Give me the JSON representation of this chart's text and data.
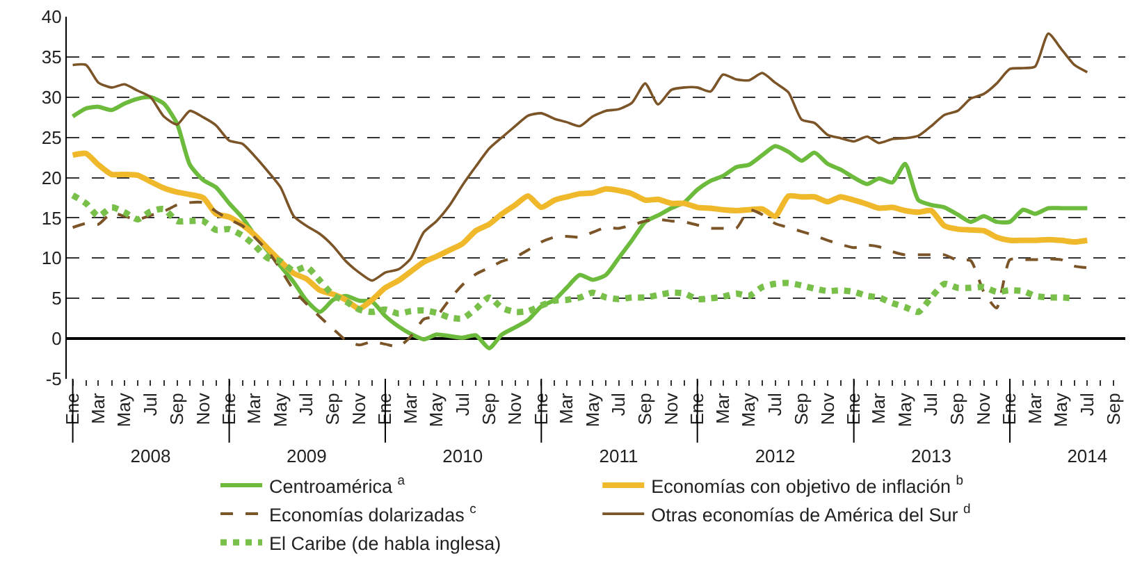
{
  "chart_data": {
    "type": "line",
    "x": [
      "2008-01",
      "2008-02",
      "2008-03",
      "2008-04",
      "2008-05",
      "2008-06",
      "2008-07",
      "2008-08",
      "2008-09",
      "2008-10",
      "2008-11",
      "2008-12",
      "2009-01",
      "2009-02",
      "2009-03",
      "2009-04",
      "2009-05",
      "2009-06",
      "2009-07",
      "2009-08",
      "2009-09",
      "2009-10",
      "2009-11",
      "2009-12",
      "2010-01",
      "2010-02",
      "2010-03",
      "2010-04",
      "2010-05",
      "2010-06",
      "2010-07",
      "2010-08",
      "2010-09",
      "2010-10",
      "2010-11",
      "2010-12",
      "2011-01",
      "2011-02",
      "2011-03",
      "2011-04",
      "2011-05",
      "2011-06",
      "2011-07",
      "2011-08",
      "2011-09",
      "2011-10",
      "2011-11",
      "2011-12",
      "2012-01",
      "2012-02",
      "2012-03",
      "2012-04",
      "2012-05",
      "2012-06",
      "2012-07",
      "2012-08",
      "2012-09",
      "2012-10",
      "2012-11",
      "2012-12",
      "2013-01",
      "2013-02",
      "2013-03",
      "2013-04",
      "2013-05",
      "2013-06",
      "2013-07",
      "2013-08",
      "2013-09",
      "2013-10",
      "2013-11",
      "2013-12",
      "2014-01",
      "2014-02",
      "2014-03",
      "2014-04",
      "2014-05",
      "2014-06",
      "2014-07"
    ],
    "series": [
      {
        "name": "Centroamérica $^{a}$",
        "color": "#6cbb3c",
        "line_style": "solid",
        "values": [
          27.6,
          28.6,
          28.8,
          28.4,
          29.2,
          29.8,
          30,
          29.2,
          26.7,
          21.6,
          19.7,
          18.8,
          16.8,
          15,
          12.9,
          10.9,
          9,
          7,
          4.7,
          3.3,
          4.8,
          5.3,
          4.7,
          4.6,
          2.8,
          1.5,
          0.6,
          -0.1,
          0.5,
          0.3,
          0.1,
          0.4,
          -1.2,
          0.5,
          1.4,
          2.3,
          4,
          4.8,
          6.3,
          7.9,
          7.3,
          7.9,
          10,
          12.2,
          14.5,
          15.3,
          16.2,
          16.9,
          18.5,
          19.6,
          20.2,
          21.3,
          21.6,
          22.8,
          23.9,
          23.2,
          22.1,
          23.1,
          21.7,
          21,
          20,
          19.2,
          19.9,
          19.4,
          21.7,
          17.2,
          16.6,
          16.3,
          15.4,
          14.5,
          15.2,
          14.5,
          14.5,
          16,
          15.5,
          16.2,
          16.2,
          16.2,
          16.2
        ]
      },
      {
        "name": "Economías con objetivo de inflación $^{b}$",
        "color": "#f0b92b",
        "line_style": "solid",
        "values": [
          22.8,
          23,
          21.6,
          20.4,
          20.4,
          20.3,
          19.5,
          18.7,
          18.2,
          17.9,
          17.5,
          15.5,
          15.1,
          14.1,
          12.9,
          11.2,
          9.6,
          8.1,
          7.4,
          6,
          5.5,
          4.8,
          3.7,
          4.8,
          6.3,
          7.2,
          8.3,
          9.5,
          10.2,
          11,
          11.8,
          13.4,
          14.2,
          15.5,
          16.6,
          17.7,
          16.3,
          17.2,
          17.6,
          18,
          18.1,
          18.6,
          18.4,
          18,
          17.2,
          17.3,
          16.8,
          16.8,
          16.3,
          16.2,
          16,
          15.9,
          16,
          16.1,
          15.2,
          17.7,
          17.6,
          17.6,
          17,
          17.6,
          17.2,
          16.7,
          16.2,
          16.3,
          15.9,
          15.7,
          15.9,
          14,
          13.6,
          13.5,
          13.4,
          12.6,
          12.2,
          12.2,
          12.2,
          12.3,
          12.2,
          12,
          12.2
        ]
      },
      {
        "name": "Economías dolarizadas $^{c}$",
        "color": "#7b5427",
        "line_style": "dashed",
        "values": [
          13.8,
          14.3,
          14.2,
          15.6,
          15.2,
          14.8,
          15.3,
          15.8,
          16.6,
          16.9,
          16.9,
          15.8,
          14.8,
          14,
          12.6,
          10.9,
          8.6,
          6,
          4.3,
          2.7,
          1.2,
          -0.2,
          -0.8,
          -0.4,
          -0.7,
          -1,
          0.2,
          2.4,
          2.8,
          4.9,
          6.7,
          8,
          8.8,
          9.6,
          10.1,
          11,
          12,
          12.6,
          12.7,
          12.6,
          13.2,
          13.8,
          13.7,
          14.1,
          14.6,
          14.8,
          14.6,
          14.5,
          14.1,
          13.7,
          13.7,
          13.7,
          16,
          15.4,
          14.3,
          13.8,
          13.3,
          12.8,
          12.2,
          11.7,
          11.3,
          11.6,
          11.4,
          10.8,
          10.4,
          10.4,
          10.4,
          10.4,
          9.7,
          9.7,
          5.8,
          3.8,
          9.8,
          9.8,
          9.8,
          9.9,
          9.8,
          9,
          8.8
        ]
      },
      {
        "name": "Otras economías de América del Sur $^{d}$",
        "color": "#7b5427",
        "line_style": "solid",
        "values": [
          34,
          34,
          31.8,
          31.2,
          31.6,
          30.8,
          30,
          27.6,
          26.6,
          28.3,
          27.5,
          26.5,
          24.6,
          24.2,
          22.7,
          20.8,
          18.8,
          15.2,
          14,
          13,
          11.5,
          9.6,
          8.2,
          7.2,
          8.2,
          8.6,
          9.9,
          13.2,
          14.6,
          16.6,
          19.1,
          21.4,
          23.6,
          25,
          26.4,
          27.7,
          28,
          27.3,
          26.9,
          26.4,
          27.6,
          28.3,
          28.5,
          29.3,
          31.7,
          29.1,
          30.9,
          31.2,
          31.2,
          30.7,
          32.8,
          32.2,
          32.1,
          33,
          31.8,
          30.6,
          27.2,
          26.8,
          25.3,
          24.9,
          24.5,
          25.1,
          24.3,
          24.8,
          24.9,
          25.2,
          26.4,
          27.8,
          28.3,
          29.8,
          30.4,
          31.7,
          33.5,
          33.6,
          33.8,
          37.9,
          36,
          34,
          33.1
        ]
      },
      {
        "name": "El Caribe (de habla inglesa)",
        "color": "#79c04a",
        "line_style": "dotted",
        "values": [
          17.8,
          16.8,
          15.2,
          16.3,
          15.7,
          14.8,
          15.8,
          16.1,
          14.6,
          14.6,
          14.6,
          13.5,
          13.6,
          12.8,
          11.6,
          10,
          9.6,
          8.4,
          8.9,
          7.2,
          5.4,
          4.6,
          3.6,
          3.3,
          3.6,
          3.1,
          3.4,
          3.5,
          3.2,
          2.6,
          2.5,
          3.7,
          5.1,
          3.8,
          3.3,
          3.4,
          4.1,
          4.7,
          4.8,
          5.1,
          5.7,
          5.1,
          4.9,
          5.1,
          5.1,
          5.4,
          5.7,
          5.6,
          4.9,
          5,
          5.2,
          5.6,
          5.3,
          6.4,
          6.8,
          6.9,
          6.6,
          6.2,
          5.9,
          6,
          5.8,
          5.3,
          5.1,
          4.4,
          3.9,
          3.3,
          5.1,
          6.8,
          6.3,
          6.3,
          6.4,
          5.8,
          6,
          5.9,
          5.3,
          5.1,
          5.1,
          5,
          null
        ]
      }
    ],
    "ylim": [
      -5,
      40
    ],
    "yticks": [
      -5,
      0,
      5,
      10,
      15,
      20,
      25,
      30,
      35,
      40
    ],
    "xlim": [
      "2007-12-18",
      "2014-09-28"
    ],
    "xticks": [
      {
        "value": "2008-01",
        "label": "Ene"
      },
      {
        "value": "2008-02",
        "label": null
      },
      {
        "value": "2008-03",
        "label": "Mar"
      },
      {
        "value": "2008-04",
        "label": null
      },
      {
        "value": "2008-05",
        "label": "May"
      },
      {
        "value": "2008-06",
        "label": null
      },
      {
        "value": "2008-07",
        "label": "Jul"
      },
      {
        "value": "2008-08",
        "label": null
      },
      {
        "value": "2008-09",
        "label": "Sep"
      },
      {
        "value": "2008-10",
        "label": null
      },
      {
        "value": "2008-11",
        "label": "Nov"
      },
      {
        "value": "2008-12",
        "label": null
      },
      {
        "value": "2009-01",
        "label": "Ene"
      },
      {
        "value": "2009-02",
        "label": null
      },
      {
        "value": "2009-03",
        "label": "Mar"
      },
      {
        "value": "2009-04",
        "label": null
      },
      {
        "value": "2009-05",
        "label": "May"
      },
      {
        "value": "2009-06",
        "label": null
      },
      {
        "value": "2009-07",
        "label": "Jul"
      },
      {
        "value": "2009-08",
        "label": null
      },
      {
        "value": "2009-09",
        "label": "Sep"
      },
      {
        "value": "2009-10",
        "label": null
      },
      {
        "value": "2009-11",
        "label": "Nov"
      },
      {
        "value": "2009-12",
        "label": null
      },
      {
        "value": "2010-01",
        "label": "Ene"
      },
      {
        "value": "2010-02",
        "label": null
      },
      {
        "value": "2010-03",
        "label": "Mar"
      },
      {
        "value": "2010-04",
        "label": null
      },
      {
        "value": "2010-05",
        "label": "May"
      },
      {
        "value": "2010-06",
        "label": null
      },
      {
        "value": "2010-07",
        "label": "Jul"
      },
      {
        "value": "2010-08",
        "label": null
      },
      {
        "value": "2010-09",
        "label": "Sep"
      },
      {
        "value": "2010-10",
        "label": null
      },
      {
        "value": "2010-11",
        "label": "Nov"
      },
      {
        "value": "2010-12",
        "label": null
      },
      {
        "value": "2011-01",
        "label": "Ene"
      },
      {
        "value": "2011-02",
        "label": null
      },
      {
        "value": "2011-03",
        "label": "Mar"
      },
      {
        "value": "2011-04",
        "label": null
      },
      {
        "value": "2011-05",
        "label": "May"
      },
      {
        "value": "2011-06",
        "label": null
      },
      {
        "value": "2011-07",
        "label": "Jul"
      },
      {
        "value": "2011-08",
        "label": null
      },
      {
        "value": "2011-09",
        "label": "Sep"
      },
      {
        "value": "2011-10",
        "label": null
      },
      {
        "value": "2011-11",
        "label": "Nov"
      },
      {
        "value": "2011-12",
        "label": null
      },
      {
        "value": "2012-01",
        "label": "Ene"
      },
      {
        "value": "2012-02",
        "label": null
      },
      {
        "value": "2012-03",
        "label": "Mar"
      },
      {
        "value": "2012-04",
        "label": null
      },
      {
        "value": "2012-05",
        "label": "May"
      },
      {
        "value": "2012-06",
        "label": null
      },
      {
        "value": "2012-07",
        "label": "Jul"
      },
      {
        "value": "2012-08",
        "label": null
      },
      {
        "value": "2012-09",
        "label": "Sep"
      },
      {
        "value": "2012-10",
        "label": null
      },
      {
        "value": "2012-11",
        "label": "Nov"
      },
      {
        "value": "2012-12",
        "label": null
      },
      {
        "value": "2013-01",
        "label": "Ene"
      },
      {
        "value": "2013-02",
        "label": null
      },
      {
        "value": "2013-03",
        "label": "Mar"
      },
      {
        "value": "2013-04",
        "label": null
      },
      {
        "value": "2013-05",
        "label": "May"
      },
      {
        "value": "2013-06",
        "label": null
      },
      {
        "value": "2013-07",
        "label": "Jul"
      },
      {
        "value": "2013-08",
        "label": null
      },
      {
        "value": "2013-09",
        "label": "Sep"
      },
      {
        "value": "2013-10",
        "label": null
      },
      {
        "value": "2013-11",
        "label": "Nov"
      },
      {
        "value": "2013-12",
        "label": null
      },
      {
        "value": "2014-01",
        "label": "Ene"
      },
      {
        "value": "2014-02",
        "label": null
      },
      {
        "value": "2014-03",
        "label": "Mar"
      },
      {
        "value": "2014-04",
        "label": null
      },
      {
        "value": "2014-05",
        "label": "May"
      },
      {
        "value": "2014-06",
        "label": null
      },
      {
        "value": "2014-07",
        "label": "Jul"
      },
      {
        "value": "2014-08",
        "label": null
      },
      {
        "value": "2014-09",
        "label": "Sep"
      }
    ],
    "x2lim": [
      "2007-12-18",
      "2014-09-28"
    ],
    "x2ticks": [
      {
        "value": "2008-01-01",
        "label": null
      },
      {
        "value": "2008-07-01",
        "label": "2008"
      },
      {
        "value": "2009-01-01",
        "label": null
      },
      {
        "value": "2009-07-01",
        "label": "2009"
      },
      {
        "value": "2010-01-01",
        "label": null
      },
      {
        "value": "2010-07-01",
        "label": "2010"
      },
      {
        "value": "2011-01-01",
        "label": null
      },
      {
        "value": "2011-07-01",
        "label": "2011"
      },
      {
        "value": "2012-01-01",
        "label": null
      },
      {
        "value": "2012-07-01",
        "label": "2012"
      },
      {
        "value": "2013-01-01",
        "label": null
      },
      {
        "value": "2013-07-01",
        "label": "2013"
      },
      {
        "value": "2014-01-01",
        "label": null
      },
      {
        "value": "2014-07-01",
        "label": "2014"
      }
    ],
    "grid": "y",
    "legend": "bottom"
  }
}
